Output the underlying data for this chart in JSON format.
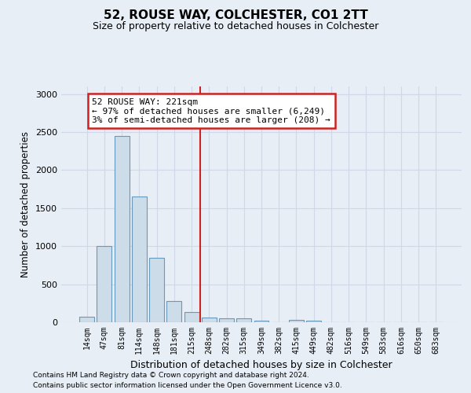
{
  "title1": "52, ROUSE WAY, COLCHESTER, CO1 2TT",
  "title2": "Size of property relative to detached houses in Colchester",
  "xlabel": "Distribution of detached houses by size in Colchester",
  "ylabel": "Number of detached properties",
  "footer1": "Contains HM Land Registry data © Crown copyright and database right 2024.",
  "footer2": "Contains public sector information licensed under the Open Government Licence v3.0.",
  "bin_labels": [
    "14sqm",
    "47sqm",
    "81sqm",
    "114sqm",
    "148sqm",
    "181sqm",
    "215sqm",
    "248sqm",
    "282sqm",
    "315sqm",
    "349sqm",
    "382sqm",
    "415sqm",
    "449sqm",
    "482sqm",
    "516sqm",
    "549sqm",
    "583sqm",
    "616sqm",
    "650sqm",
    "683sqm"
  ],
  "bar_values": [
    75,
    1000,
    2450,
    1650,
    850,
    280,
    130,
    60,
    55,
    55,
    20,
    0,
    30,
    20,
    0,
    0,
    0,
    0,
    0,
    0,
    0
  ],
  "bar_color": "#ccdce8",
  "bar_edge_color": "#6699bb",
  "grid_color": "#d0d8e8",
  "annotation_line1": "52 ROUSE WAY: 221sqm",
  "annotation_line2": "← 97% of detached houses are smaller (6,249)",
  "annotation_line3": "3% of semi-detached houses are larger (208) →",
  "annotation_box_color": "#ffffff",
  "annotation_box_edge": "#cc2222",
  "vline_color": "#cc2222",
  "vline_x": 6.5,
  "ylim": [
    0,
    3100
  ],
  "yticks": [
    0,
    500,
    1000,
    1500,
    2000,
    2500,
    3000
  ],
  "background_color": "#e8eef6",
  "title1_fontsize": 11,
  "title2_fontsize": 9
}
